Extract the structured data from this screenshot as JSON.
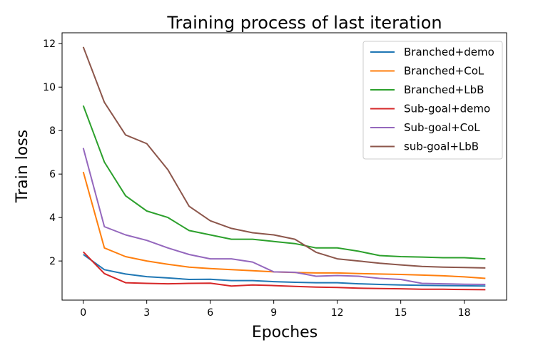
{
  "chart_data": {
    "type": "line",
    "title": "Training process of last iteration",
    "xlabel": "Epoches",
    "ylabel": "Train loss",
    "xlim": [
      -1,
      20
    ],
    "ylim": [
      0.2,
      12.5
    ],
    "xticks": [
      0,
      3,
      6,
      9,
      12,
      15,
      18
    ],
    "yticks": [
      2,
      4,
      6,
      8,
      10,
      12
    ],
    "grid": false,
    "legend_position": "top-right",
    "x": [
      0,
      1,
      2,
      3,
      4,
      5,
      6,
      7,
      8,
      9,
      10,
      11,
      12,
      13,
      14,
      15,
      16,
      17,
      18,
      19
    ],
    "series": [
      {
        "name": "Branched+demo",
        "color": "#1f77b4",
        "values": [
          2.3,
          1.6,
          1.4,
          1.28,
          1.22,
          1.15,
          1.16,
          1.1,
          1.1,
          1.05,
          1.02,
          1.0,
          1.0,
          0.95,
          0.92,
          0.9,
          0.88,
          0.87,
          0.86,
          0.85
        ]
      },
      {
        "name": "Branched+CoL",
        "color": "#ff7f0e",
        "values": [
          6.1,
          2.6,
          2.2,
          2.0,
          1.85,
          1.72,
          1.65,
          1.6,
          1.55,
          1.5,
          1.47,
          1.45,
          1.45,
          1.42,
          1.4,
          1.38,
          1.35,
          1.32,
          1.27,
          1.2
        ]
      },
      {
        "name": "Branched+LbB",
        "color": "#2ca02c",
        "values": [
          9.15,
          6.55,
          5.0,
          4.3,
          4.0,
          3.4,
          3.2,
          3.0,
          3.0,
          2.9,
          2.8,
          2.6,
          2.6,
          2.45,
          2.25,
          2.2,
          2.18,
          2.15,
          2.15,
          2.1
        ]
      },
      {
        "name": "Sub-goal+demo",
        "color": "#d62728",
        "values": [
          2.42,
          1.42,
          1.0,
          0.97,
          0.95,
          0.97,
          0.98,
          0.85,
          0.9,
          0.87,
          0.83,
          0.8,
          0.78,
          0.75,
          0.73,
          0.72,
          0.7,
          0.7,
          0.69,
          0.68
        ]
      },
      {
        "name": "Sub-goal+CoL",
        "color": "#9467bd",
        "values": [
          7.2,
          3.58,
          3.2,
          2.95,
          2.6,
          2.3,
          2.1,
          2.1,
          1.95,
          1.5,
          1.48,
          1.3,
          1.33,
          1.3,
          1.2,
          1.15,
          0.97,
          0.95,
          0.93,
          0.92
        ]
      },
      {
        "name": "sub-goal+LbB",
        "color": "#8c564b",
        "values": [
          11.85,
          9.3,
          7.8,
          7.4,
          6.2,
          4.52,
          3.85,
          3.5,
          3.3,
          3.2,
          3.0,
          2.4,
          2.1,
          2.0,
          1.9,
          1.82,
          1.75,
          1.72,
          1.7,
          1.68
        ]
      }
    ]
  }
}
